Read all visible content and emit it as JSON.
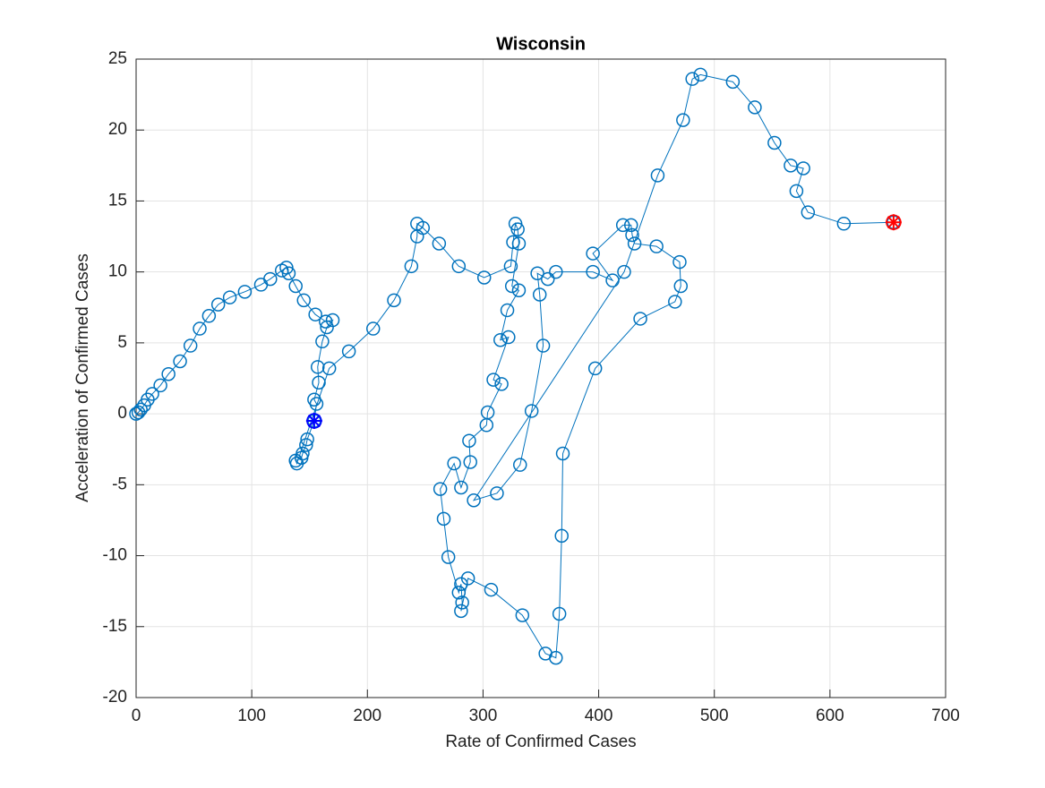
{
  "chart_data": {
    "type": "line",
    "title": "Wisconsin",
    "x_label": "Rate of Confirmed Cases",
    "y_label": "Acceleration of Confirmed Cases",
    "xlim": [
      0,
      700
    ],
    "xticks": [
      0,
      100,
      200,
      300,
      400,
      500,
      600,
      700
    ],
    "ylim": [
      -20,
      25
    ],
    "yticks": [
      -20,
      -15,
      -10,
      -5,
      0,
      5,
      10,
      15,
      20,
      25
    ],
    "grid": true,
    "series": [
      {
        "color": "#0072bd",
        "marker": "circle",
        "x": [
          0,
          2,
          4,
          7,
          10,
          14,
          21,
          28,
          38,
          47,
          55,
          63,
          71,
          81,
          94,
          108,
          116,
          126,
          130,
          132,
          138,
          145,
          155,
          164,
          170,
          165,
          161,
          157,
          158,
          154,
          156,
          154,
          148,
          147,
          144,
          143,
          138,
          139,
          167,
          184,
          205,
          223,
          238,
          243,
          243,
          248,
          262,
          279,
          301,
          324,
          326,
          328,
          330,
          331,
          325,
          331,
          321,
          315,
          322,
          309,
          316,
          304,
          303,
          288,
          289,
          281,
          275,
          263,
          266,
          270,
          279,
          281,
          282,
          281,
          287,
          307,
          334,
          354,
          363,
          366,
          368,
          369,
          397,
          436,
          466,
          471,
          470,
          450,
          431,
          429,
          428,
          421,
          395,
          412,
          395,
          363,
          356,
          347,
          349,
          352,
          342,
          332,
          312,
          292,
          422,
          451,
          473,
          481,
          488,
          516,
          535,
          552,
          566,
          577,
          571,
          581,
          612,
          655
        ],
        "values": [
          0,
          0.1,
          0.3,
          0.6,
          1,
          1.4,
          2,
          2.8,
          3.7,
          4.8,
          6,
          6.9,
          7.7,
          8.2,
          8.6,
          9.1,
          9.5,
          10.1,
          10.3,
          9.9,
          9,
          8,
          7,
          6.5,
          6.6,
          6.1,
          5.1,
          3.3,
          2.2,
          1,
          0.7,
          -0.5,
          -1.8,
          -2.2,
          -2.8,
          -3.1,
          -3.3,
          -3.5,
          3.2,
          4.4,
          6,
          8,
          10.4,
          12.5,
          13.4,
          13.1,
          12,
          10.4,
          9.6,
          10.4,
          12.1,
          13.4,
          13,
          12,
          9,
          8.7,
          7.3,
          5.2,
          5.4,
          2.4,
          2.1,
          0.1,
          -0.8,
          -1.9,
          -3.4,
          -5.2,
          -3.5,
          -5.3,
          -7.4,
          -10.1,
          -12.6,
          -12,
          -13.3,
          -13.9,
          -11.6,
          -12.4,
          -14.2,
          -16.9,
          -17.2,
          -14.1,
          -8.6,
          -2.8,
          3.2,
          6.7,
          7.9,
          9,
          10.7,
          11.8,
          12,
          12.6,
          13.3,
          13.3,
          11.3,
          9.4,
          10,
          10,
          9.5,
          9.9,
          8.4,
          4.8,
          0.2,
          -3.6,
          -5.6,
          -6.1,
          10,
          16.8,
          20.7,
          23.6,
          23.9,
          23.4,
          21.6,
          19.1,
          17.5,
          17.3,
          15.7,
          14.2,
          13.4,
          13.5
        ]
      },
      {
        "color": "#0000ff",
        "marker": "star",
        "x": [
          154
        ],
        "values": [
          -0.5
        ]
      },
      {
        "color": "#ff0000",
        "marker": "star",
        "x": [
          655
        ],
        "values": [
          13.5
        ]
      }
    ]
  }
}
